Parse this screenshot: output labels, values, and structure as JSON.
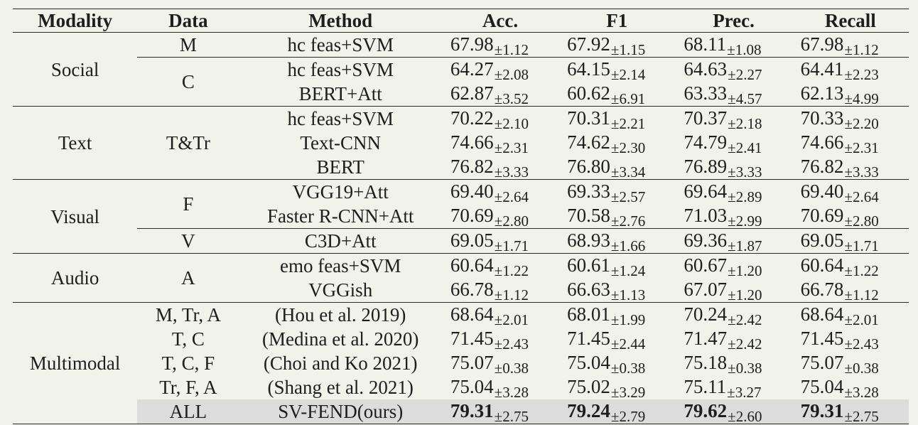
{
  "headers": [
    "Modality",
    "Data",
    "Method",
    "Acc.",
    "F1",
    "Prec.",
    "Recall"
  ],
  "groups": [
    {
      "modality": "Social",
      "rows": [
        {
          "data": "M",
          "method": "hc feas+SVM",
          "metrics": [
            [
              "67.98",
              "±1.12"
            ],
            [
              "67.92",
              "±1.15"
            ],
            [
              "68.11",
              "±1.08"
            ],
            [
              "67.98",
              "±1.12"
            ]
          ]
        },
        {
          "data": "C",
          "method": "hc feas+SVM",
          "metrics": [
            [
              "64.27",
              "±2.08"
            ],
            [
              "64.15",
              "±2.14"
            ],
            [
              "64.63",
              "±2.27"
            ],
            [
              "64.41",
              "±2.23"
            ]
          ]
        },
        {
          "data": "",
          "method": "BERT+Att",
          "metrics": [
            [
              "62.87",
              "±3.52"
            ],
            [
              "60.62",
              "±6.91"
            ],
            [
              "63.33",
              "±4.57"
            ],
            [
              "62.13",
              "±4.99"
            ]
          ]
        }
      ]
    },
    {
      "modality": "Text",
      "rows": [
        {
          "data": "T&Tr",
          "method": "hc feas+SVM",
          "metrics": [
            [
              "70.22",
              "±2.10"
            ],
            [
              "70.31",
              "±2.21"
            ],
            [
              "70.37",
              "±2.18"
            ],
            [
              "70.33",
              "±2.20"
            ]
          ]
        },
        {
          "data": "",
          "method": "Text-CNN",
          "metrics": [
            [
              "74.66",
              "±2.31"
            ],
            [
              "74.62",
              "±2.30"
            ],
            [
              "74.79",
              "±2.41"
            ],
            [
              "74.66",
              "±2.31"
            ]
          ]
        },
        {
          "data": "",
          "method": "BERT",
          "metrics": [
            [
              "76.82",
              "±3.33"
            ],
            [
              "76.80",
              "±3.34"
            ],
            [
              "76.89",
              "±3.33"
            ],
            [
              "76.82",
              "±3.33"
            ]
          ]
        }
      ]
    },
    {
      "modality": "Visual",
      "rows": [
        {
          "data": "F",
          "method": "VGG19+Att",
          "metrics": [
            [
              "69.40",
              "±2.64"
            ],
            [
              "69.33",
              "±2.57"
            ],
            [
              "69.64",
              "±2.89"
            ],
            [
              "69.40",
              "±2.64"
            ]
          ]
        },
        {
          "data": "",
          "method": "Faster R-CNN+Att",
          "metrics": [
            [
              "70.69",
              "±2.80"
            ],
            [
              "70.58",
              "±2.76"
            ],
            [
              "71.03",
              "±2.99"
            ],
            [
              "70.69",
              "±2.80"
            ]
          ]
        },
        {
          "data": "V",
          "method": "C3D+Att",
          "metrics": [
            [
              "69.05",
              "±1.71"
            ],
            [
              "68.93",
              "±1.66"
            ],
            [
              "69.36",
              "±1.87"
            ],
            [
              "69.05",
              "±1.71"
            ]
          ]
        }
      ]
    },
    {
      "modality": "Audio",
      "rows": [
        {
          "data": "A",
          "method": "emo feas+SVM",
          "metrics": [
            [
              "60.64",
              "±1.22"
            ],
            [
              "60.61",
              "±1.24"
            ],
            [
              "60.67",
              "±1.20"
            ],
            [
              "60.64",
              "±1.22"
            ]
          ]
        },
        {
          "data": "",
          "method": "VGGish",
          "metrics": [
            [
              "66.78",
              "±1.12"
            ],
            [
              "66.63",
              "±1.13"
            ],
            [
              "67.07",
              "±1.20"
            ],
            [
              "66.78",
              "±1.12"
            ]
          ]
        }
      ]
    },
    {
      "modality": "Multimodal",
      "rows": [
        {
          "data": "M, Tr, A",
          "method": "(Hou et al. 2019)",
          "metrics": [
            [
              "68.64",
              "±2.01"
            ],
            [
              "68.01",
              "±1.99"
            ],
            [
              "70.24",
              "±2.42"
            ],
            [
              "68.64",
              "±2.01"
            ]
          ]
        },
        {
          "data": "T, C",
          "method": "(Medina et al. 2020)",
          "metrics": [
            [
              "71.45",
              "±2.43"
            ],
            [
              "71.45",
              "±2.44"
            ],
            [
              "71.47",
              "±2.42"
            ],
            [
              "71.45",
              "±2.43"
            ]
          ]
        },
        {
          "data": "T, C, F",
          "method": "(Choi and Ko 2021)",
          "metrics": [
            [
              "75.07",
              "±0.38"
            ],
            [
              "75.04",
              "±0.38"
            ],
            [
              "75.18",
              "±0.38"
            ],
            [
              "75.07",
              "±0.38"
            ]
          ]
        },
        {
          "data": "Tr, F, A",
          "method": "(Shang et al. 2021)",
          "metrics": [
            [
              "75.04",
              "±3.28"
            ],
            [
              "75.02",
              "±3.29"
            ],
            [
              "75.11",
              "±3.27"
            ],
            [
              "75.04",
              "±3.28"
            ]
          ]
        },
        {
          "data": "ALL",
          "method": "SV-FEND(ours)",
          "metrics": [
            [
              "79.31",
              "±2.75"
            ],
            [
              "79.24",
              "±2.79"
            ],
            [
              "79.62",
              "±2.60"
            ],
            [
              "79.31",
              "±2.75"
            ]
          ]
        }
      ]
    }
  ]
}
